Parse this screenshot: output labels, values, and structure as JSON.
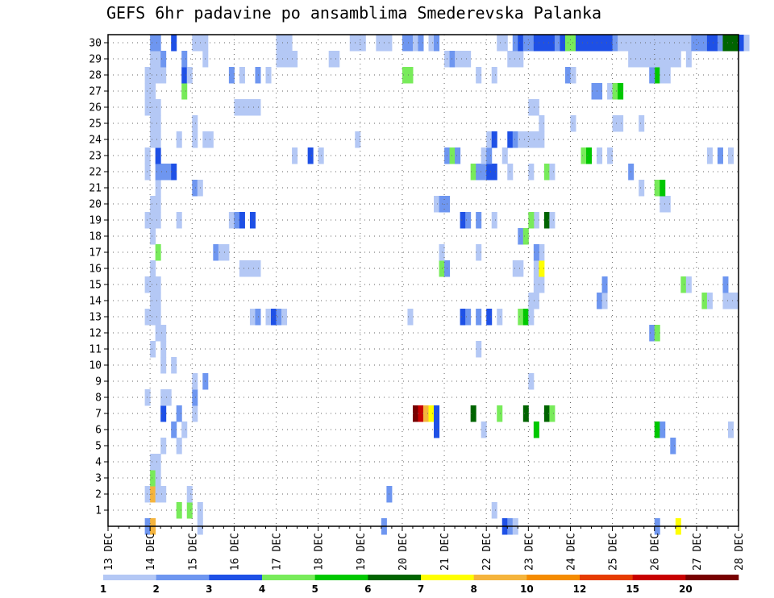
{
  "chart_data": {
    "type": "heatmap",
    "title": "GEFS 6hr padavine po ansamblima Smederevska Palanka",
    "xlabel": "",
    "ylabel": "",
    "x_dates": [
      "13 DEC",
      "14 DEC",
      "15 DEC",
      "16 DEC",
      "17 DEC",
      "18 DEC",
      "19 DEC",
      "20 DEC",
      "21 DEC",
      "22 DEC",
      "23 DEC",
      "24 DEC",
      "25 DEC",
      "26 DEC",
      "27 DEC",
      "28 DEC"
    ],
    "x_step_hours": 6,
    "y_members": [
      "1",
      "2",
      "3",
      "4",
      "5",
      "6",
      "7",
      "8",
      "9",
      "10",
      "11",
      "12",
      "13",
      "14",
      "15",
      "16",
      "17",
      "18",
      "19",
      "20",
      "21",
      "22",
      "23",
      "24",
      "25",
      "26",
      "27",
      "28",
      "29",
      "30"
    ],
    "grid": true,
    "legend": {
      "placement": "bottom",
      "tick_labels": [
        "1",
        "2",
        "3",
        "4",
        "5",
        "6",
        "7",
        "8",
        "10",
        "12",
        "15",
        "20"
      ],
      "colors": [
        "#b4c8f5",
        "#6e96f0",
        "#1e50e6",
        "#78eb5a",
        "#00c800",
        "#006400",
        "#ffff00",
        "#f5b43c",
        "#f58c00",
        "#e63c00",
        "#c80000",
        "#780000"
      ]
    },
    "cells": [
      [
        7,
        0,
        2
      ],
      [
        8,
        0,
        8
      ],
      [
        17,
        0,
        1
      ],
      [
        52,
        0,
        2
      ],
      [
        75,
        0,
        3
      ],
      [
        76,
        0,
        2
      ],
      [
        77,
        0,
        1
      ],
      [
        104,
        0,
        2
      ],
      [
        108,
        0,
        7
      ],
      [
        13,
        1,
        4
      ],
      [
        15,
        1,
        4
      ],
      [
        17,
        1,
        1
      ],
      [
        73,
        1,
        1
      ],
      [
        7,
        2,
        1
      ],
      [
        8,
        2,
        8
      ],
      [
        9,
        2,
        1
      ],
      [
        10,
        2,
        1
      ],
      [
        15,
        2,
        1
      ],
      [
        53,
        2,
        2
      ],
      [
        8,
        3,
        4
      ],
      [
        9,
        3,
        1
      ],
      [
        8,
        4,
        1
      ],
      [
        9,
        4,
        1
      ],
      [
        10,
        5,
        1
      ],
      [
        13,
        5,
        1
      ],
      [
        107,
        5,
        2
      ],
      [
        12,
        6,
        2
      ],
      [
        14,
        6,
        1
      ],
      [
        62,
        6,
        3
      ],
      [
        71,
        6,
        1
      ],
      [
        81,
        6,
        5
      ],
      [
        104,
        6,
        5
      ],
      [
        105,
        6,
        2
      ],
      [
        118,
        6,
        1
      ],
      [
        10,
        7,
        3
      ],
      [
        13,
        7,
        2
      ],
      [
        16,
        7,
        1
      ],
      [
        58,
        7,
        12
      ],
      [
        59,
        7,
        11
      ],
      [
        60,
        7,
        8
      ],
      [
        61,
        7,
        7
      ],
      [
        62,
        7,
        3
      ],
      [
        69,
        7,
        6
      ],
      [
        74,
        7,
        4
      ],
      [
        79,
        7,
        6
      ],
      [
        83,
        7,
        6
      ],
      [
        84,
        7,
        4
      ],
      [
        7,
        8,
        1
      ],
      [
        10,
        8,
        1
      ],
      [
        11,
        8,
        1
      ],
      [
        16,
        8,
        2
      ],
      [
        16,
        9,
        1
      ],
      [
        18,
        9,
        2
      ],
      [
        80,
        9,
        1
      ],
      [
        10,
        10,
        1
      ],
      [
        12,
        10,
        1
      ],
      [
        8,
        11,
        1
      ],
      [
        10,
        11,
        1
      ],
      [
        70,
        11,
        1
      ],
      [
        9,
        12,
        1
      ],
      [
        10,
        12,
        1
      ],
      [
        103,
        12,
        2
      ],
      [
        104,
        12,
        4
      ],
      [
        7,
        13,
        1
      ],
      [
        8,
        13,
        1
      ],
      [
        9,
        13,
        1
      ],
      [
        27,
        13,
        1
      ],
      [
        28,
        13,
        2
      ],
      [
        30,
        13,
        1
      ],
      [
        31,
        13,
        3
      ],
      [
        32,
        13,
        2
      ],
      [
        33,
        13,
        1
      ],
      [
        57,
        13,
        1
      ],
      [
        67,
        13,
        3
      ],
      [
        68,
        13,
        2
      ],
      [
        70,
        13,
        2
      ],
      [
        72,
        13,
        3
      ],
      [
        74,
        13,
        1
      ],
      [
        78,
        13,
        4
      ],
      [
        79,
        13,
        5
      ],
      [
        80,
        13,
        1
      ],
      [
        8,
        14,
        1
      ],
      [
        9,
        14,
        1
      ],
      [
        80,
        14,
        1
      ],
      [
        81,
        14,
        1
      ],
      [
        93,
        14,
        2
      ],
      [
        94,
        14,
        1
      ],
      [
        113,
        14,
        4
      ],
      [
        114,
        14,
        1
      ],
      [
        117,
        14,
        1
      ],
      [
        118,
        14,
        1
      ],
      [
        119,
        14,
        1
      ],
      [
        7,
        15,
        1
      ],
      [
        8,
        15,
        1
      ],
      [
        9,
        15,
        1
      ],
      [
        81,
        15,
        1
      ],
      [
        82,
        15,
        1
      ],
      [
        94,
        15,
        2
      ],
      [
        109,
        15,
        4
      ],
      [
        110,
        15,
        1
      ],
      [
        117,
        15,
        2
      ],
      [
        8,
        16,
        1
      ],
      [
        25,
        16,
        1
      ],
      [
        26,
        16,
        1
      ],
      [
        27,
        16,
        1
      ],
      [
        28,
        16,
        1
      ],
      [
        63,
        16,
        4
      ],
      [
        64,
        16,
        2
      ],
      [
        77,
        16,
        1
      ],
      [
        78,
        16,
        1
      ],
      [
        81,
        16,
        1
      ],
      [
        82,
        16,
        7
      ],
      [
        9,
        17,
        4
      ],
      [
        20,
        17,
        2
      ],
      [
        21,
        17,
        1
      ],
      [
        22,
        17,
        1
      ],
      [
        63,
        17,
        1
      ],
      [
        70,
        17,
        1
      ],
      [
        82,
        17,
        1
      ],
      [
        81,
        17,
        2
      ],
      [
        8,
        18,
        1
      ],
      [
        78,
        18,
        2
      ],
      [
        79,
        18,
        4
      ],
      [
        7,
        19,
        1
      ],
      [
        8,
        19,
        1
      ],
      [
        9,
        19,
        1
      ],
      [
        13,
        19,
        1
      ],
      [
        23,
        19,
        1
      ],
      [
        24,
        19,
        2
      ],
      [
        25,
        19,
        3
      ],
      [
        27,
        19,
        3
      ],
      [
        67,
        19,
        3
      ],
      [
        68,
        19,
        2
      ],
      [
        70,
        19,
        2
      ],
      [
        73,
        19,
        1
      ],
      [
        81,
        19,
        1
      ],
      [
        80,
        19,
        4
      ],
      [
        83,
        19,
        6
      ],
      [
        84,
        19,
        1
      ],
      [
        128,
        19,
        1
      ],
      [
        8,
        20,
        1
      ],
      [
        9,
        20,
        1
      ],
      [
        62,
        20,
        1
      ],
      [
        63,
        20,
        2
      ],
      [
        64,
        20,
        2
      ],
      [
        105,
        20,
        1
      ],
      [
        106,
        20,
        1
      ],
      [
        9,
        21,
        1
      ],
      [
        16,
        21,
        2
      ],
      [
        17,
        21,
        1
      ],
      [
        101,
        21,
        1
      ],
      [
        104,
        21,
        4
      ],
      [
        105,
        21,
        5
      ],
      [
        7,
        22,
        1
      ],
      [
        9,
        22,
        2
      ],
      [
        10,
        22,
        2
      ],
      [
        11,
        22,
        2
      ],
      [
        12,
        22,
        3
      ],
      [
        69,
        22,
        4
      ],
      [
        70,
        22,
        2
      ],
      [
        71,
        22,
        2
      ],
      [
        72,
        22,
        3
      ],
      [
        73,
        22,
        3
      ],
      [
        76,
        22,
        1
      ],
      [
        80,
        22,
        1
      ],
      [
        83,
        22,
        4
      ],
      [
        84,
        22,
        1
      ],
      [
        99,
        22,
        2
      ],
      [
        7,
        23,
        1
      ],
      [
        9,
        23,
        3
      ],
      [
        35,
        23,
        1
      ],
      [
        38,
        23,
        3
      ],
      [
        40,
        23,
        1
      ],
      [
        64,
        23,
        2
      ],
      [
        65,
        23,
        4
      ],
      [
        66,
        23,
        2
      ],
      [
        71,
        23,
        1
      ],
      [
        72,
        23,
        2
      ],
      [
        75,
        23,
        1
      ],
      [
        90,
        23,
        4
      ],
      [
        91,
        23,
        5
      ],
      [
        93,
        23,
        1
      ],
      [
        95,
        23,
        1
      ],
      [
        114,
        23,
        1
      ],
      [
        116,
        23,
        2
      ],
      [
        118,
        23,
        1
      ],
      [
        8,
        24,
        1
      ],
      [
        9,
        24,
        1
      ],
      [
        13,
        24,
        1
      ],
      [
        16,
        24,
        1
      ],
      [
        18,
        24,
        1
      ],
      [
        19,
        24,
        1
      ],
      [
        47,
        24,
        1
      ],
      [
        72,
        24,
        1
      ],
      [
        73,
        24,
        3
      ],
      [
        76,
        24,
        3
      ],
      [
        77,
        24,
        2
      ],
      [
        78,
        24,
        1
      ],
      [
        79,
        24,
        1
      ],
      [
        80,
        24,
        1
      ],
      [
        81,
        24,
        1
      ],
      [
        82,
        24,
        1
      ],
      [
        8,
        25,
        1
      ],
      [
        9,
        25,
        1
      ],
      [
        16,
        25,
        1
      ],
      [
        82,
        25,
        1
      ],
      [
        88,
        25,
        1
      ],
      [
        96,
        25,
        1
      ],
      [
        97,
        25,
        1
      ],
      [
        101,
        25,
        1
      ],
      [
        7,
        26,
        1
      ],
      [
        8,
        26,
        1
      ],
      [
        9,
        26,
        1
      ],
      [
        24,
        26,
        1
      ],
      [
        25,
        26,
        1
      ],
      [
        26,
        26,
        1
      ],
      [
        27,
        26,
        1
      ],
      [
        28,
        26,
        1
      ],
      [
        80,
        26,
        1
      ],
      [
        81,
        26,
        1
      ],
      [
        7,
        27,
        1
      ],
      [
        8,
        27,
        1
      ],
      [
        14,
        27,
        4
      ],
      [
        92,
        27,
        2
      ],
      [
        93,
        27,
        2
      ],
      [
        95,
        27,
        1
      ],
      [
        96,
        27,
        4
      ],
      [
        97,
        27,
        5
      ],
      [
        7,
        28,
        1
      ],
      [
        8,
        28,
        1
      ],
      [
        9,
        28,
        1
      ],
      [
        10,
        28,
        1
      ],
      [
        14,
        28,
        3
      ],
      [
        15,
        28,
        1
      ],
      [
        23,
        28,
        2
      ],
      [
        25,
        28,
        1
      ],
      [
        28,
        28,
        2
      ],
      [
        30,
        28,
        1
      ],
      [
        56,
        28,
        4
      ],
      [
        57,
        28,
        4
      ],
      [
        70,
        28,
        1
      ],
      [
        73,
        28,
        1
      ],
      [
        87,
        28,
        2
      ],
      [
        88,
        28,
        1
      ],
      [
        104,
        28,
        5
      ],
      [
        103,
        28,
        2
      ],
      [
        106,
        28,
        1
      ],
      [
        105,
        28,
        1
      ],
      [
        8,
        29,
        1
      ],
      [
        9,
        29,
        1
      ],
      [
        10,
        29,
        2
      ],
      [
        14,
        29,
        2
      ],
      [
        18,
        29,
        1
      ],
      [
        32,
        29,
        1
      ],
      [
        33,
        29,
        1
      ],
      [
        34,
        29,
        1
      ],
      [
        35,
        29,
        1
      ],
      [
        42,
        29,
        1
      ],
      [
        43,
        29,
        1
      ],
      [
        64,
        29,
        1
      ],
      [
        65,
        29,
        2
      ],
      [
        66,
        29,
        1
      ],
      [
        67,
        29,
        1
      ],
      [
        68,
        29,
        1
      ],
      [
        76,
        29,
        1
      ],
      [
        77,
        29,
        1
      ],
      [
        78,
        29,
        1
      ],
      [
        99,
        29,
        1
      ],
      [
        100,
        29,
        1
      ],
      [
        101,
        29,
        1
      ],
      [
        102,
        29,
        1
      ],
      [
        103,
        29,
        1
      ],
      [
        104,
        29,
        1
      ],
      [
        105,
        29,
        1
      ],
      [
        106,
        29,
        1
      ],
      [
        107,
        29,
        1
      ],
      [
        108,
        29,
        1
      ],
      [
        110,
        29,
        1
      ],
      [
        8,
        30,
        2
      ],
      [
        9,
        30,
        2
      ],
      [
        12,
        30,
        3
      ],
      [
        16,
        30,
        1
      ],
      [
        17,
        30,
        1
      ],
      [
        18,
        30,
        1
      ],
      [
        32,
        30,
        1
      ],
      [
        33,
        30,
        1
      ],
      [
        34,
        30,
        1
      ],
      [
        46,
        30,
        1
      ],
      [
        47,
        30,
        1
      ],
      [
        48,
        30,
        1
      ],
      [
        51,
        30,
        1
      ],
      [
        52,
        30,
        1
      ],
      [
        53,
        30,
        1
      ],
      [
        56,
        30,
        2
      ],
      [
        57,
        30,
        2
      ],
      [
        58,
        30,
        1
      ],
      [
        59,
        30,
        2
      ],
      [
        61,
        30,
        1
      ],
      [
        62,
        30,
        2
      ],
      [
        74,
        30,
        1
      ],
      [
        75,
        30,
        1
      ],
      [
        77,
        30,
        2
      ],
      [
        78,
        30,
        3
      ],
      [
        79,
        30,
        2
      ],
      [
        80,
        30,
        2
      ],
      [
        81,
        30,
        3
      ],
      [
        82,
        30,
        3
      ],
      [
        83,
        30,
        3
      ],
      [
        84,
        30,
        3
      ],
      [
        85,
        30,
        2
      ],
      [
        86,
        30,
        3
      ],
      [
        87,
        30,
        4
      ],
      [
        88,
        30,
        4
      ],
      [
        89,
        30,
        3
      ],
      [
        90,
        30,
        3
      ],
      [
        91,
        30,
        3
      ],
      [
        92,
        30,
        3
      ],
      [
        93,
        30,
        3
      ],
      [
        94,
        30,
        3
      ],
      [
        95,
        30,
        3
      ],
      [
        96,
        30,
        2
      ],
      [
        97,
        30,
        1
      ],
      [
        98,
        30,
        1
      ],
      [
        99,
        30,
        1
      ],
      [
        100,
        30,
        1
      ],
      [
        101,
        30,
        1
      ],
      [
        102,
        30,
        1
      ],
      [
        103,
        30,
        1
      ],
      [
        104,
        30,
        1
      ],
      [
        105,
        30,
        1
      ],
      [
        106,
        30,
        1
      ],
      [
        107,
        30,
        1
      ],
      [
        108,
        30,
        1
      ],
      [
        109,
        30,
        1
      ],
      [
        110,
        30,
        1
      ],
      [
        111,
        30,
        2
      ],
      [
        112,
        30,
        2
      ],
      [
        113,
        30,
        2
      ],
      [
        114,
        30,
        3
      ],
      [
        115,
        30,
        3
      ],
      [
        116,
        30,
        2
      ],
      [
        117,
        30,
        6
      ],
      [
        118,
        30,
        6
      ],
      [
        119,
        30,
        6
      ],
      [
        120,
        30,
        3
      ],
      [
        121,
        30,
        1
      ]
    ]
  }
}
